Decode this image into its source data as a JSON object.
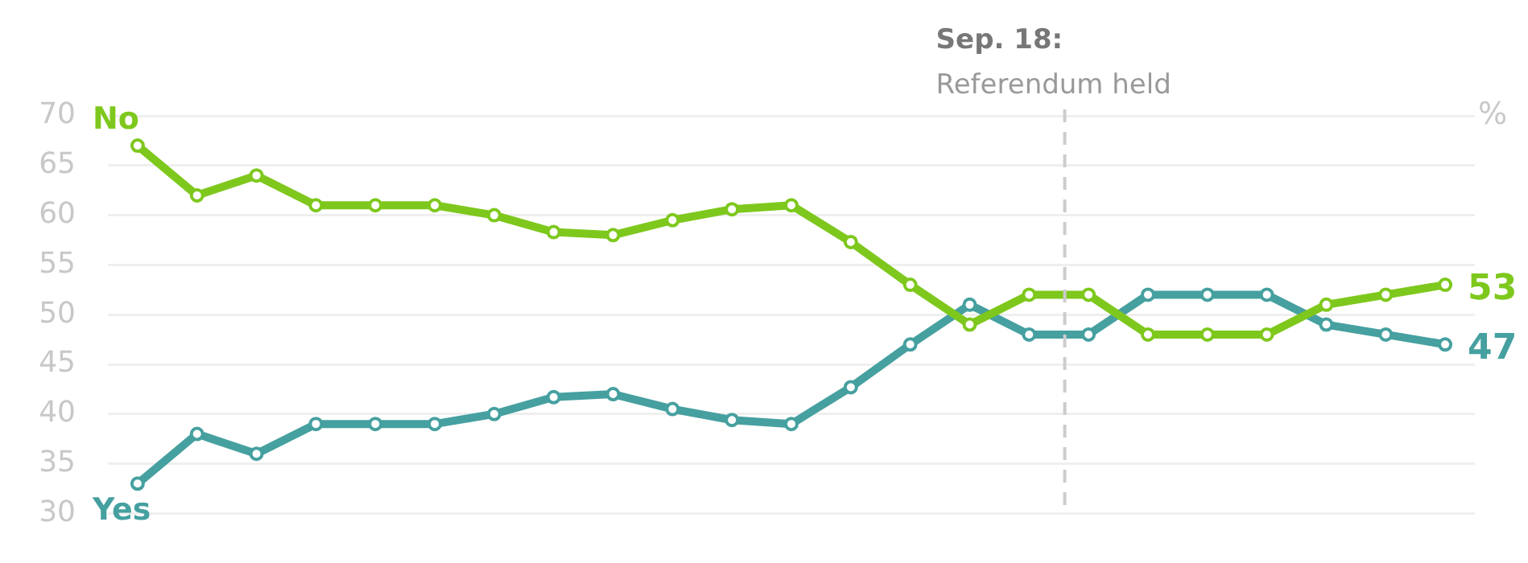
{
  "chart_data": {
    "type": "line",
    "ylabel": "%",
    "categories": [
      null,
      null,
      null,
      null,
      null,
      null,
      null,
      null,
      null,
      null,
      null,
      null,
      null,
      null,
      null,
      null,
      null,
      null,
      null,
      null,
      null,
      null,
      null
    ],
    "ylim": [
      30,
      70
    ],
    "yticks": [
      30,
      35,
      40,
      45,
      50,
      55,
      60,
      65,
      70
    ],
    "grid": "y",
    "legend": "left",
    "tick_labels": "y",
    "marker": "circle",
    "line_style": "solid",
    "series": [
      {
        "name": "No",
        "color": "#7ec81d",
        "values": [
          67,
          62,
          64,
          61,
          61,
          61,
          60,
          58.3,
          58,
          59.5,
          60.6,
          61,
          57.3,
          53,
          49,
          52,
          52,
          48,
          48,
          48,
          51,
          52,
          53
        ],
        "value_labels": [
          null,
          null,
          null,
          null,
          null,
          null,
          null,
          null,
          null,
          null,
          null,
          null,
          null,
          null,
          null,
          null,
          null,
          null,
          null,
          null,
          null,
          null,
          "53"
        ]
      },
      {
        "name": "Yes",
        "color": "#46a0a0",
        "values": [
          33,
          38,
          36,
          39,
          39,
          39,
          40,
          41.7,
          42,
          40.5,
          39.4,
          39,
          42.7,
          47,
          51,
          48,
          48,
          52,
          52,
          52,
          49,
          48,
          47
        ],
        "value_labels": [
          null,
          null,
          null,
          null,
          null,
          null,
          null,
          null,
          null,
          null,
          null,
          null,
          null,
          null,
          null,
          null,
          null,
          null,
          null,
          null,
          null,
          null,
          "47"
        ]
      }
    ],
    "annotations": [
      "Sep. 18: Referendum held"
    ]
  }
}
